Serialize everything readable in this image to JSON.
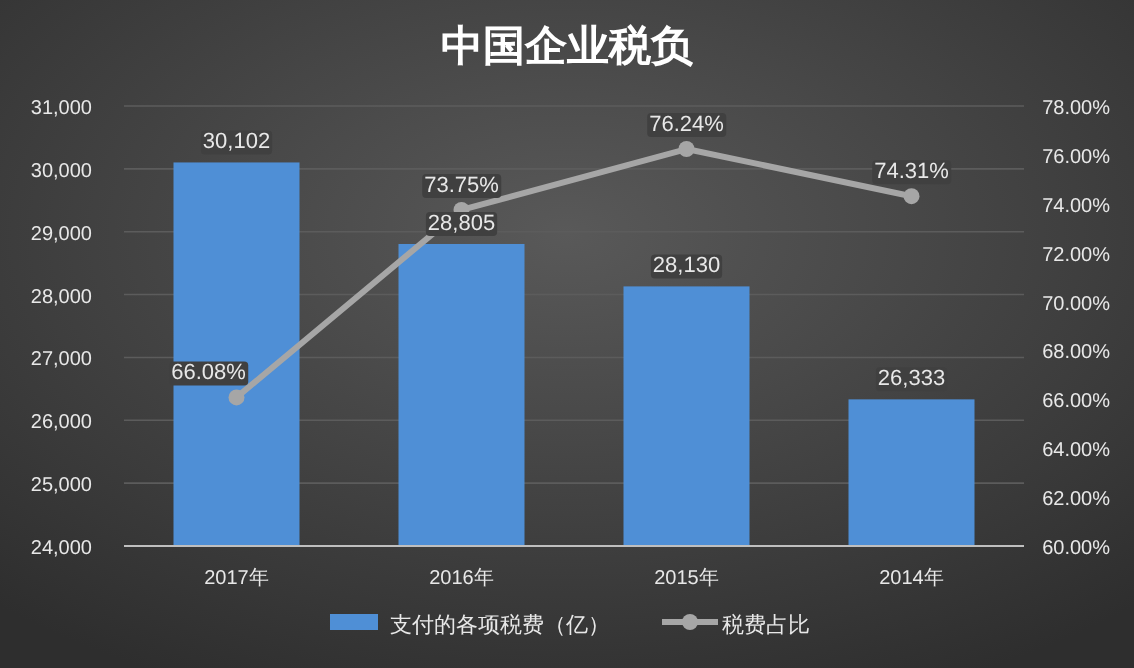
{
  "chart_data": {
    "type": "bar",
    "title": "中国企业税负",
    "categories": [
      "2017年",
      "2016年",
      "2015年",
      "2014年"
    ],
    "series": [
      {
        "name": "支付的各项税费（亿）",
        "color": "#4f8fd6",
        "values": [
          30102,
          28805,
          28130,
          26333
        ],
        "value_labels": [
          "30,102",
          "28,805",
          "28,130",
          "26,333"
        ]
      },
      {
        "name": "税费占比",
        "type": "line",
        "axis": "y2",
        "color": "#a6a6a6",
        "values": [
          66.08,
          73.75,
          76.24,
          74.31
        ],
        "value_labels": [
          "66.08%",
          "73.75%",
          "76.24%",
          "74.31%"
        ]
      }
    ],
    "ylim": [
      24000,
      31000
    ],
    "yticks": [
      {
        "value": 24000,
        "label": "24,000"
      },
      {
        "value": 25000,
        "label": "25,000"
      },
      {
        "value": 26000,
        "label": "26,000"
      },
      {
        "value": 27000,
        "label": "27,000"
      },
      {
        "value": 28000,
        "label": "28,000"
      },
      {
        "value": 29000,
        "label": "29,000"
      },
      {
        "value": 30000,
        "label": "30,000"
      },
      {
        "value": 31000,
        "label": "31,000"
      }
    ],
    "y2lim": [
      60,
      78
    ],
    "y2ticks": [
      {
        "value": 60,
        "label": "60.00%"
      },
      {
        "value": 62,
        "label": "62.00%"
      },
      {
        "value": 64,
        "label": "64.00%"
      },
      {
        "value": 66,
        "label": "66.00%"
      },
      {
        "value": 68,
        "label": "68.00%"
      },
      {
        "value": 70,
        "label": "70.00%"
      },
      {
        "value": 72,
        "label": "72.00%"
      },
      {
        "value": 74,
        "label": "74.00%"
      },
      {
        "value": 76,
        "label": "76.00%"
      },
      {
        "value": 78,
        "label": "78.00%"
      }
    ],
    "grid": "y",
    "legend": "bottom",
    "marker": "circle"
  }
}
